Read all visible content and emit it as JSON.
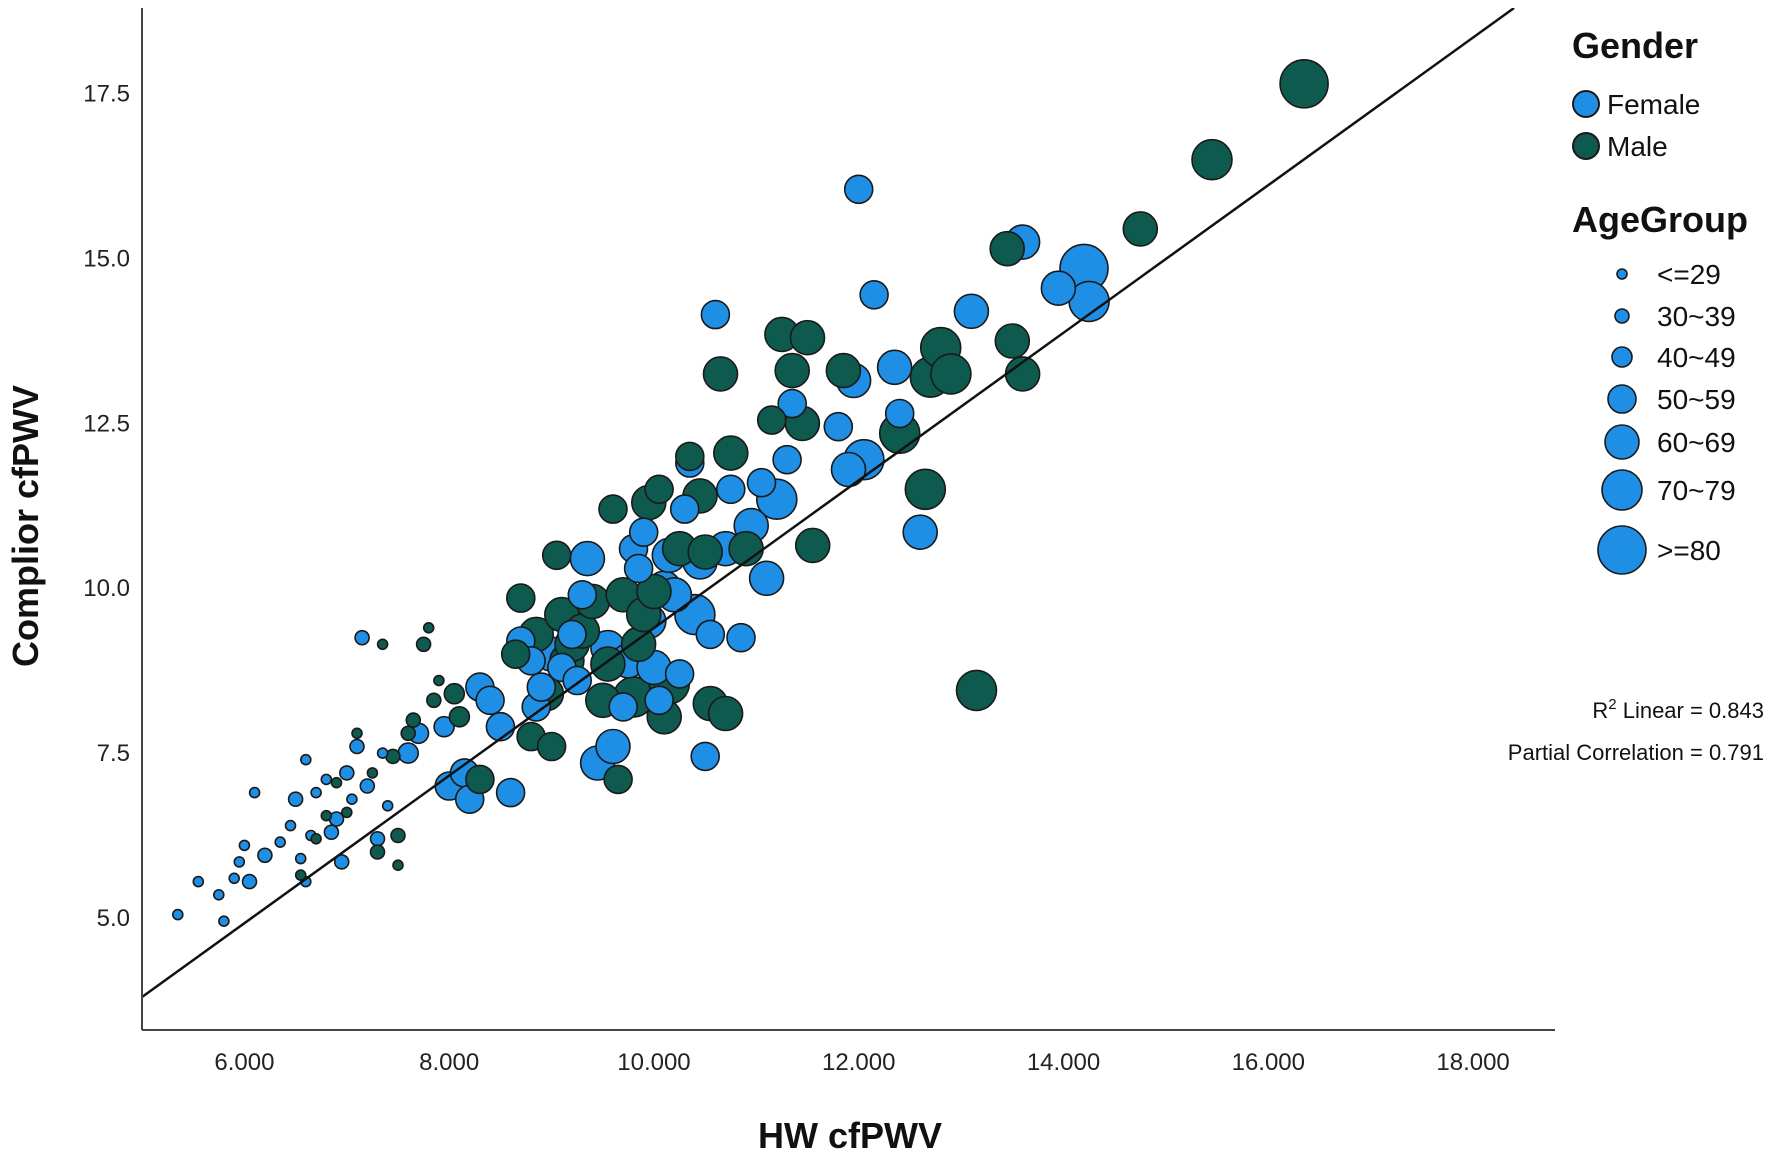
{
  "chart_data": {
    "type": "scatter",
    "xlabel": "HW cfPWV",
    "ylabel": "Complior cfPWV",
    "xlim": [
      5.0,
      18.8
    ],
    "ylim": [
      3.3,
      18.8
    ],
    "x_ticks": [
      {
        "value": 6,
        "label": "6.000"
      },
      {
        "value": 8,
        "label": "8.000"
      },
      {
        "value": 10,
        "label": "10.000"
      },
      {
        "value": 12,
        "label": "12.000"
      },
      {
        "value": 14,
        "label": "14.000"
      },
      {
        "value": 16,
        "label": "16.000"
      },
      {
        "value": 18,
        "label": "18.000"
      }
    ],
    "y_ticks": [
      {
        "value": 5.0,
        "label": "5.0"
      },
      {
        "value": 7.5,
        "label": "7.5"
      },
      {
        "value": 10.0,
        "label": "10.0"
      },
      {
        "value": 12.5,
        "label": "12.5"
      },
      {
        "value": 15.0,
        "label": "15.0"
      },
      {
        "value": 17.5,
        "label": "17.5"
      }
    ],
    "grid": false,
    "legend_placement": "right",
    "legend": {
      "gender_title": "Gender",
      "gender": [
        {
          "label": "Female",
          "color": "#1f8fe5"
        },
        {
          "label": "Male",
          "color": "#0e5a4f"
        }
      ],
      "age_title": "AgeGroup",
      "age_groups": [
        "<=29",
        "30~39",
        "40~49",
        "50~59",
        "60~69",
        "70~79",
        ">=80"
      ]
    },
    "fit_line": {
      "type": "linear",
      "points": [
        [
          5.0,
          3.8
        ],
        [
          18.4,
          18.8
        ]
      ]
    },
    "stats": {
      "r2_label": "R",
      "r2_sup": "2",
      "r2_text": " Linear = 0.843",
      "partial_corr_text": "Partial Correlation = 0.791"
    },
    "series": [
      {
        "name": "Female",
        "points": [
          [
            5.35,
            5.05,
            0
          ],
          [
            5.55,
            5.55,
            0
          ],
          [
            5.75,
            5.35,
            0
          ],
          [
            5.8,
            4.95,
            0
          ],
          [
            5.9,
            5.6,
            0
          ],
          [
            5.95,
            5.85,
            0
          ],
          [
            6.0,
            6.1,
            0
          ],
          [
            6.05,
            5.55,
            1
          ],
          [
            6.1,
            6.9,
            0
          ],
          [
            6.2,
            5.95,
            1
          ],
          [
            6.35,
            6.15,
            0
          ],
          [
            6.45,
            6.4,
            0
          ],
          [
            6.5,
            6.8,
            1
          ],
          [
            6.55,
            5.9,
            0
          ],
          [
            6.6,
            5.55,
            0
          ],
          [
            6.6,
            7.4,
            0
          ],
          [
            6.65,
            6.25,
            0
          ],
          [
            6.7,
            6.9,
            0
          ],
          [
            6.8,
            7.1,
            0
          ],
          [
            6.85,
            6.3,
            1
          ],
          [
            6.9,
            6.5,
            1
          ],
          [
            6.95,
            5.85,
            1
          ],
          [
            7.0,
            7.2,
            1
          ],
          [
            7.05,
            6.8,
            0
          ],
          [
            7.1,
            7.6,
            1
          ],
          [
            7.15,
            9.25,
            1
          ],
          [
            7.2,
            7.0,
            1
          ],
          [
            7.3,
            6.2,
            1
          ],
          [
            7.35,
            7.5,
            0
          ],
          [
            7.4,
            6.7,
            0
          ],
          [
            7.6,
            7.5,
            2
          ],
          [
            7.7,
            7.8,
            2
          ],
          [
            7.95,
            7.9,
            2
          ],
          [
            8.0,
            7.0,
            3
          ],
          [
            8.15,
            7.2,
            3
          ],
          [
            8.2,
            6.8,
            3
          ],
          [
            8.3,
            8.5,
            3
          ],
          [
            8.4,
            8.3,
            3
          ],
          [
            8.5,
            7.9,
            3
          ],
          [
            8.6,
            6.9,
            3
          ],
          [
            8.7,
            9.2,
            3
          ],
          [
            8.8,
            8.9,
            3
          ],
          [
            8.85,
            8.2,
            3
          ],
          [
            8.9,
            8.5,
            3
          ],
          [
            9.0,
            9.0,
            4
          ],
          [
            9.1,
            8.8,
            3
          ],
          [
            9.2,
            9.3,
            3
          ],
          [
            9.25,
            8.6,
            3
          ],
          [
            9.3,
            9.9,
            3
          ],
          [
            9.35,
            10.45,
            4
          ],
          [
            9.45,
            7.35,
            4
          ],
          [
            9.55,
            9.1,
            4
          ],
          [
            9.6,
            7.6,
            4
          ],
          [
            9.7,
            8.2,
            3
          ],
          [
            9.75,
            8.9,
            4
          ],
          [
            9.8,
            10.6,
            3
          ],
          [
            9.85,
            10.3,
            3
          ],
          [
            9.9,
            10.85,
            3
          ],
          [
            9.95,
            9.5,
            4
          ],
          [
            10.0,
            8.8,
            4
          ],
          [
            10.05,
            8.3,
            3
          ],
          [
            10.1,
            10.0,
            4
          ],
          [
            10.15,
            10.5,
            4
          ],
          [
            10.2,
            9.9,
            4
          ],
          [
            10.25,
            8.7,
            3
          ],
          [
            10.3,
            11.2,
            3
          ],
          [
            10.35,
            11.9,
            3
          ],
          [
            10.4,
            9.6,
            5
          ],
          [
            10.45,
            10.4,
            4
          ],
          [
            10.5,
            7.45,
            3
          ],
          [
            10.55,
            9.3,
            3
          ],
          [
            10.6,
            14.15,
            3
          ],
          [
            10.7,
            10.6,
            4
          ],
          [
            10.75,
            11.5,
            3
          ],
          [
            10.85,
            9.25,
            3
          ],
          [
            10.95,
            10.95,
            4
          ],
          [
            11.05,
            11.6,
            3
          ],
          [
            11.1,
            10.15,
            4
          ],
          [
            11.2,
            11.35,
            5
          ],
          [
            11.3,
            11.95,
            3
          ],
          [
            11.35,
            12.8,
            3
          ],
          [
            11.8,
            12.45,
            3
          ],
          [
            11.9,
            11.8,
            4
          ],
          [
            11.95,
            13.15,
            4
          ],
          [
            12.0,
            16.05,
            3
          ],
          [
            12.05,
            11.95,
            5
          ],
          [
            12.15,
            14.45,
            3
          ],
          [
            12.35,
            13.35,
            4
          ],
          [
            12.4,
            12.65,
            3
          ],
          [
            12.6,
            10.85,
            4
          ],
          [
            13.1,
            14.2,
            4
          ],
          [
            13.6,
            15.25,
            4
          ],
          [
            13.95,
            14.55,
            4
          ],
          [
            14.2,
            14.85,
            6
          ],
          [
            14.25,
            14.35,
            5
          ]
        ]
      },
      {
        "name": "Male",
        "points": [
          [
            6.55,
            5.65,
            0
          ],
          [
            6.7,
            6.2,
            0
          ],
          [
            6.8,
            6.55,
            0
          ],
          [
            6.9,
            7.05,
            0
          ],
          [
            7.0,
            6.6,
            0
          ],
          [
            7.1,
            7.8,
            0
          ],
          [
            7.25,
            7.2,
            0
          ],
          [
            7.3,
            6.0,
            1
          ],
          [
            7.35,
            9.15,
            0
          ],
          [
            7.45,
            7.45,
            1
          ],
          [
            7.5,
            6.25,
            1
          ],
          [
            7.5,
            5.8,
            0
          ],
          [
            7.6,
            7.8,
            1
          ],
          [
            7.65,
            8.0,
            1
          ],
          [
            7.75,
            9.15,
            1
          ],
          [
            7.8,
            9.4,
            0
          ],
          [
            7.85,
            8.3,
            1
          ],
          [
            7.9,
            8.6,
            0
          ],
          [
            8.05,
            8.4,
            2
          ],
          [
            8.1,
            8.05,
            2
          ],
          [
            8.3,
            7.1,
            3
          ],
          [
            8.65,
            9.0,
            3
          ],
          [
            8.7,
            9.85,
            3
          ],
          [
            8.8,
            7.75,
            3
          ],
          [
            8.85,
            9.3,
            4
          ],
          [
            8.95,
            8.4,
            4
          ],
          [
            9.0,
            7.6,
            3
          ],
          [
            9.05,
            10.5,
            3
          ],
          [
            9.1,
            9.6,
            4
          ],
          [
            9.15,
            8.9,
            4
          ],
          [
            9.2,
            9.15,
            4
          ],
          [
            9.3,
            9.35,
            4
          ],
          [
            9.4,
            9.8,
            4
          ],
          [
            9.5,
            8.3,
            4
          ],
          [
            9.55,
            8.85,
            4
          ],
          [
            9.6,
            11.2,
            3
          ],
          [
            9.65,
            7.1,
            3
          ],
          [
            9.7,
            9.9,
            4
          ],
          [
            9.8,
            8.35,
            5
          ],
          [
            9.85,
            9.15,
            4
          ],
          [
            9.9,
            9.6,
            4
          ],
          [
            9.95,
            11.3,
            4
          ],
          [
            10.0,
            9.95,
            4
          ],
          [
            10.05,
            11.5,
            3
          ],
          [
            10.1,
            8.05,
            4
          ],
          [
            10.15,
            8.55,
            5
          ],
          [
            10.25,
            10.6,
            4
          ],
          [
            10.35,
            12.0,
            3
          ],
          [
            10.45,
            11.4,
            4
          ],
          [
            10.5,
            10.55,
            4
          ],
          [
            10.55,
            8.25,
            4
          ],
          [
            10.65,
            13.25,
            4
          ],
          [
            10.7,
            8.1,
            4
          ],
          [
            10.75,
            12.05,
            4
          ],
          [
            10.9,
            10.6,
            4
          ],
          [
            11.15,
            12.55,
            3
          ],
          [
            11.25,
            13.85,
            4
          ],
          [
            11.35,
            13.3,
            4
          ],
          [
            11.45,
            12.5,
            4
          ],
          [
            11.5,
            13.8,
            4
          ],
          [
            11.55,
            10.65,
            4
          ],
          [
            11.85,
            13.3,
            4
          ],
          [
            12.4,
            12.35,
            5
          ],
          [
            12.65,
            11.5,
            5
          ],
          [
            12.7,
            13.2,
            5
          ],
          [
            12.8,
            13.65,
            5
          ],
          [
            12.9,
            13.25,
            5
          ],
          [
            13.15,
            8.45,
            5
          ],
          [
            13.45,
            15.15,
            4
          ],
          [
            13.5,
            13.75,
            4
          ],
          [
            13.6,
            13.25,
            4
          ],
          [
            14.75,
            15.45,
            4
          ],
          [
            15.45,
            16.5,
            5
          ],
          [
            16.35,
            17.65,
            6
          ]
        ]
      }
    ]
  }
}
